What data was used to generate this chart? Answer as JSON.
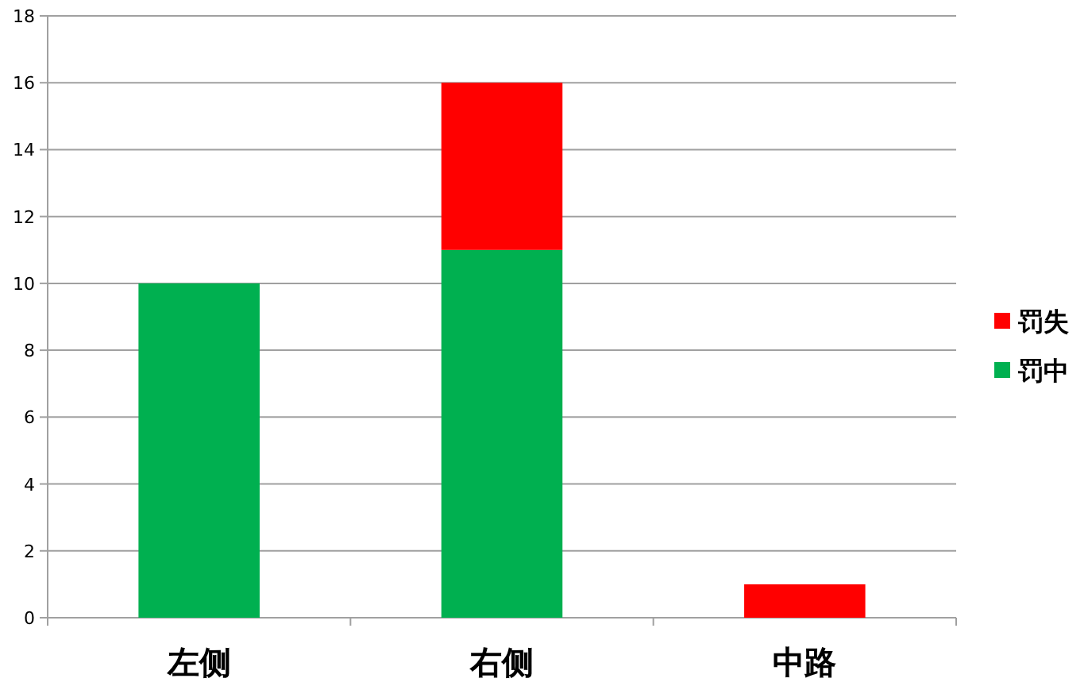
{
  "chart_data": {
    "type": "bar",
    "stacked": true,
    "categories": [
      "左侧",
      "右侧",
      "中路"
    ],
    "series": [
      {
        "name": "罚中",
        "color": "#00b050",
        "values": [
          10,
          11,
          0
        ]
      },
      {
        "name": "罚失",
        "color": "#ff0000",
        "values": [
          0,
          5,
          1
        ]
      }
    ],
    "ylim": [
      0,
      18
    ],
    "yticks": [
      0,
      2,
      4,
      6,
      8,
      10,
      12,
      14,
      16,
      18
    ],
    "grid": "y",
    "legend": "right"
  }
}
